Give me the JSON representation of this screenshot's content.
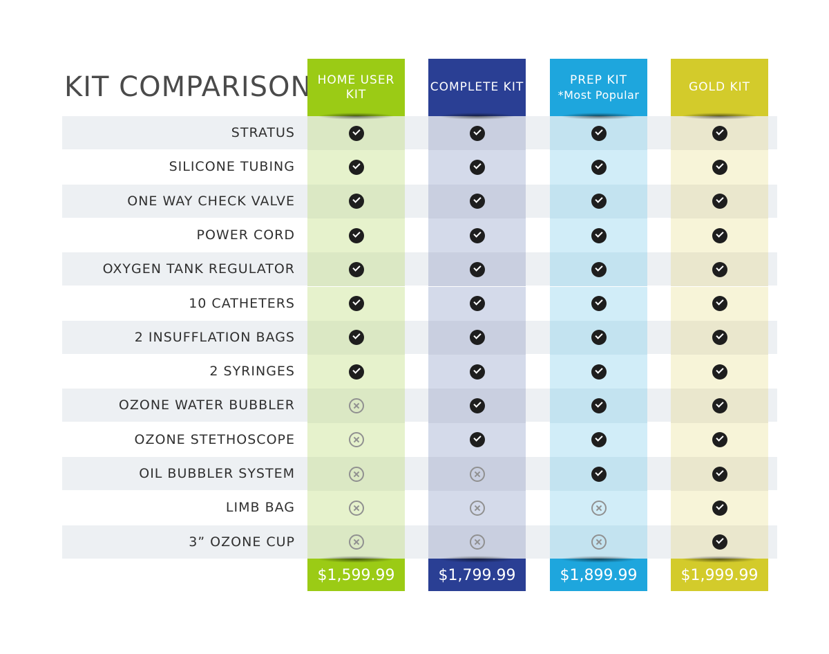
{
  "title": "KIT COMPARISON",
  "kits": [
    {
      "name_line1": "HOME USER",
      "name_line2": "KIT",
      "price": "$1,599.99",
      "header_color": "#9bcb15",
      "band_color": "#e6f2cc",
      "band_alt_color": "#dbe8c4"
    },
    {
      "name_line1": "COMPLETE KIT",
      "name_line2": "",
      "price": "$1,799.99",
      "header_color": "#2a3f94",
      "band_color": "#d4daea",
      "band_alt_color": "#c9cfe0"
    },
    {
      "name_line1": "PREP KIT",
      "name_line2": "*Most Popular",
      "price": "$1,899.99",
      "header_color": "#1ea6dd",
      "band_color": "#d1edf8",
      "band_alt_color": "#c3e3f0"
    },
    {
      "name_line1": "GOLD KIT",
      "name_line2": "",
      "price": "$1,999.99",
      "header_color": "#d3cb2b",
      "band_color": "#f7f4d8",
      "band_alt_color": "#eae7cd"
    }
  ],
  "features": [
    {
      "label": "STRATUS",
      "included": [
        true,
        true,
        true,
        true
      ]
    },
    {
      "label": "SILICONE TUBING",
      "included": [
        true,
        true,
        true,
        true
      ]
    },
    {
      "label": "ONE WAY CHECK VALVE",
      "included": [
        true,
        true,
        true,
        true
      ]
    },
    {
      "label": "POWER CORD",
      "included": [
        true,
        true,
        true,
        true
      ]
    },
    {
      "label": "OXYGEN TANK REGULATOR",
      "included": [
        true,
        true,
        true,
        true
      ]
    },
    {
      "label": "10 CATHETERS",
      "included": [
        true,
        true,
        true,
        true
      ]
    },
    {
      "label": "2 INSUFFLATION BAGS",
      "included": [
        true,
        true,
        true,
        true
      ]
    },
    {
      "label": "2 SYRINGES",
      "included": [
        true,
        true,
        true,
        true
      ]
    },
    {
      "label": "OZONE WATER BUBBLER",
      "included": [
        false,
        true,
        true,
        true
      ]
    },
    {
      "label": "OZONE STETHOSCOPE",
      "included": [
        false,
        true,
        true,
        true
      ]
    },
    {
      "label": "OIL BUBBLER SYSTEM",
      "included": [
        false,
        false,
        true,
        true
      ]
    },
    {
      "label": "LIMB BAG",
      "included": [
        false,
        false,
        false,
        true
      ]
    },
    {
      "label": "3” OZONE CUP",
      "included": [
        false,
        false,
        false,
        true
      ]
    }
  ]
}
